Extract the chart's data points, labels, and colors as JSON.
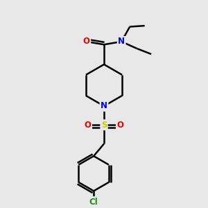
{
  "background_color": "#e8e8e8",
  "atom_colors": {
    "C": "#000000",
    "N": "#0000ee",
    "O": "#ee0000",
    "S": "#cccc00",
    "Cl": "#228822",
    "H": "#000000"
  },
  "bond_color": "#000000",
  "bond_width": 1.8,
  "figsize": [
    3.0,
    3.0
  ],
  "dpi": 100
}
